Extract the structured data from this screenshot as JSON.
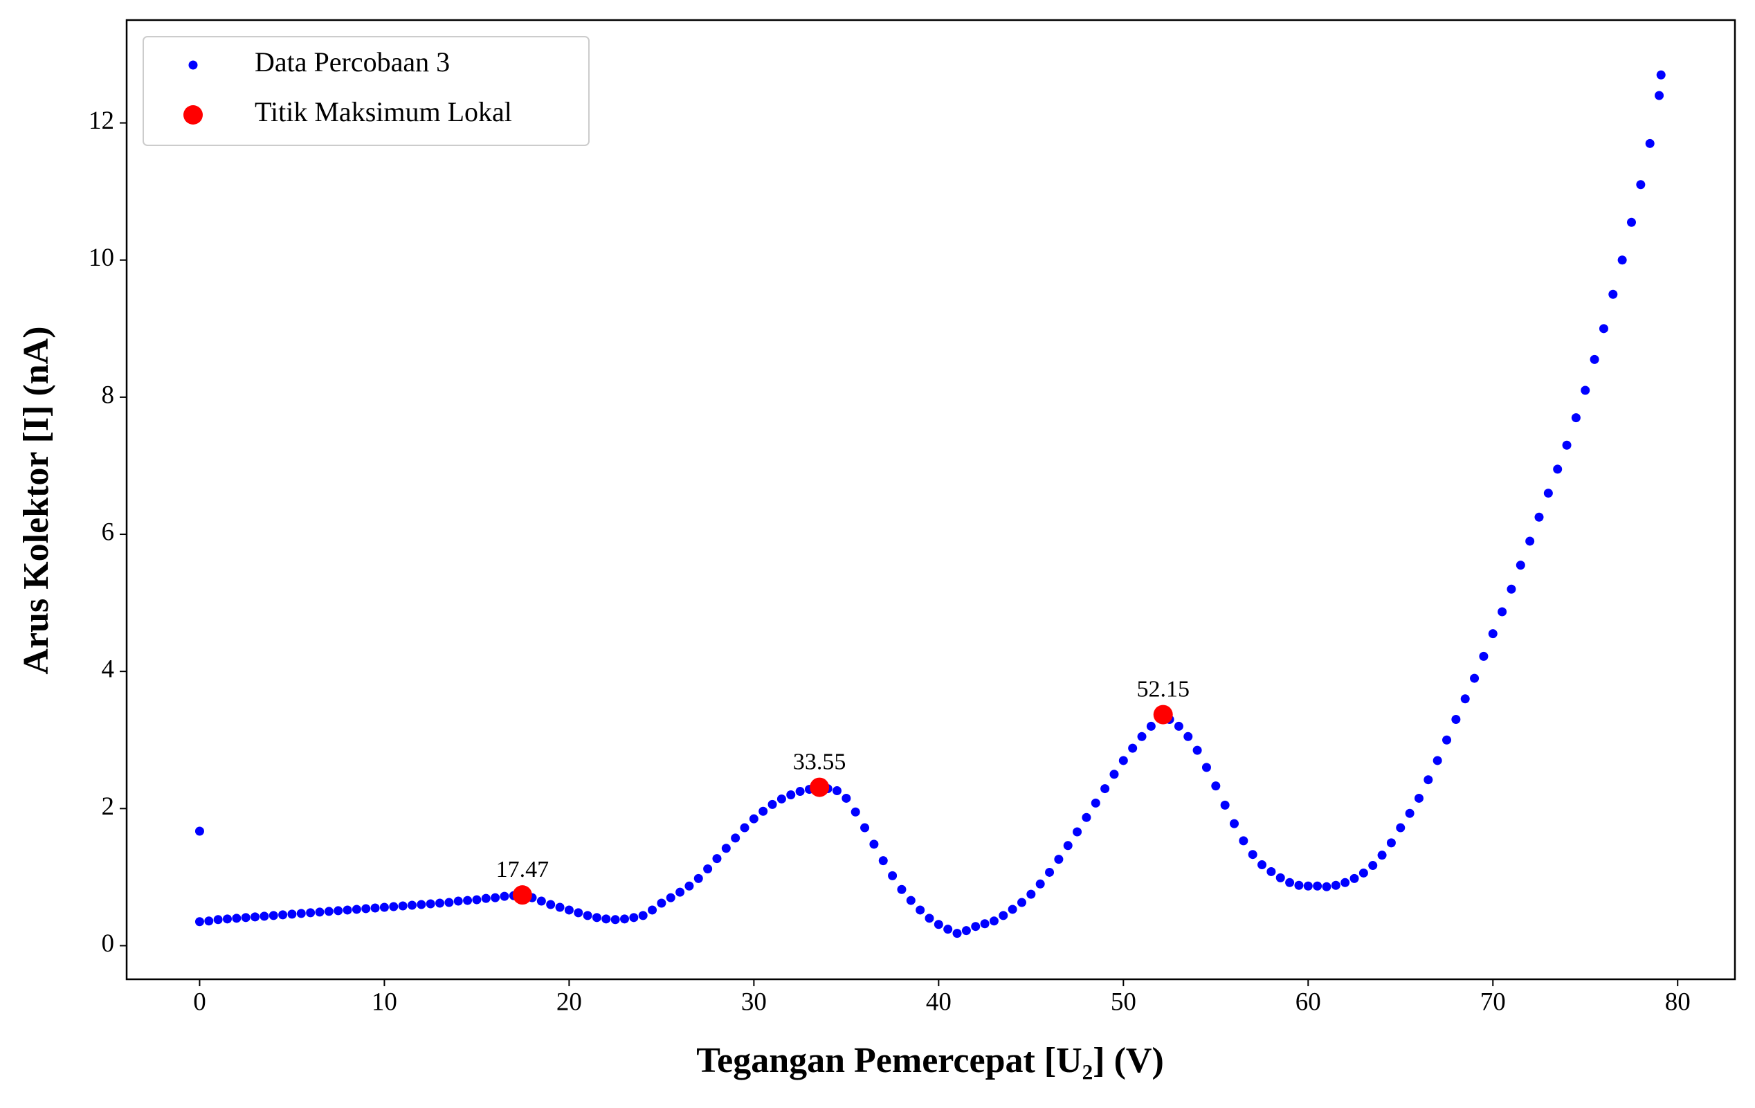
{
  "chart_data": {
    "type": "scatter",
    "xlabel": "Tegangan Pemercepat [U₂] (V)",
    "ylabel": "Arus Kolektor [I] (nA)",
    "xlim": [
      -3.95,
      83.1
    ],
    "ylim": [
      -0.49,
      13.5
    ],
    "xticks": [
      0,
      10,
      20,
      30,
      40,
      50,
      60,
      70,
      80
    ],
    "yticks": [
      0,
      2,
      4,
      6,
      8,
      10,
      12
    ],
    "grid": false,
    "legend": "upper left",
    "series": [
      {
        "name": "Data Percobaan 3",
        "color": "#0000ff",
        "x": [
          0,
          0,
          0.5,
          1,
          1.5,
          2,
          2.5,
          3,
          3.5,
          4,
          4.5,
          5,
          5.5,
          6,
          6.5,
          7,
          7.5,
          8,
          8.5,
          9,
          9.5,
          10,
          10.5,
          11,
          11.5,
          12,
          12.5,
          13,
          13.5,
          14,
          14.5,
          15,
          15.5,
          16,
          16.5,
          17,
          17.5,
          18,
          18.5,
          19,
          19.5,
          20,
          20.5,
          21,
          21.5,
          22,
          22.5,
          23,
          23.5,
          24,
          24.5,
          25,
          25.5,
          26,
          26.5,
          27,
          27.5,
          28,
          28.5,
          29,
          29.5,
          30,
          30.5,
          31,
          31.5,
          32,
          32.5,
          33,
          33.5,
          34,
          34.5,
          35,
          35.5,
          36,
          36.5,
          37,
          37.5,
          38,
          38.5,
          39,
          39.5,
          40,
          40.5,
          41,
          41.5,
          42,
          42.5,
          43,
          43.5,
          44,
          44.5,
          45,
          45.5,
          46,
          46.5,
          47,
          47.5,
          48,
          48.5,
          49,
          49.5,
          50,
          50.5,
          51,
          51.5,
          52,
          52.5,
          53,
          53.5,
          54,
          54.5,
          55,
          55.5,
          56,
          56.5,
          57,
          57.5,
          58,
          58.5,
          59,
          59.5,
          60,
          60.5,
          61,
          61.5,
          62,
          62.5,
          63,
          63.5,
          64,
          64.5,
          65,
          65.5,
          66,
          66.5,
          67,
          67.5,
          68,
          68.5,
          69,
          69.5,
          70,
          70.5,
          71,
          71.5,
          72,
          72.5,
          73,
          73.5,
          74,
          74.5,
          75,
          75.5,
          76,
          76.5,
          77,
          77.5,
          78,
          78.5,
          79,
          79.1
        ],
        "values": [
          1.67,
          0.35,
          0.36,
          0.38,
          0.39,
          0.4,
          0.41,
          0.42,
          0.43,
          0.44,
          0.45,
          0.46,
          0.47,
          0.48,
          0.49,
          0.5,
          0.51,
          0.52,
          0.53,
          0.54,
          0.55,
          0.56,
          0.57,
          0.58,
          0.59,
          0.6,
          0.61,
          0.62,
          0.63,
          0.65,
          0.66,
          0.67,
          0.69,
          0.7,
          0.72,
          0.73,
          0.74,
          0.7,
          0.65,
          0.6,
          0.56,
          0.52,
          0.48,
          0.44,
          0.41,
          0.39,
          0.38,
          0.39,
          0.41,
          0.44,
          0.52,
          0.62,
          0.7,
          0.78,
          0.87,
          0.98,
          1.12,
          1.27,
          1.42,
          1.57,
          1.72,
          1.85,
          1.96,
          2.06,
          2.14,
          2.2,
          2.25,
          2.28,
          2.3,
          2.29,
          2.26,
          2.15,
          1.95,
          1.72,
          1.48,
          1.24,
          1.02,
          0.82,
          0.66,
          0.52,
          0.4,
          0.31,
          0.24,
          0.18,
          0.22,
          0.28,
          0.32,
          0.36,
          0.44,
          0.53,
          0.63,
          0.75,
          0.9,
          1.07,
          1.26,
          1.46,
          1.66,
          1.87,
          2.08,
          2.29,
          2.5,
          2.7,
          2.88,
          3.05,
          3.2,
          3.33,
          3.3,
          3.2,
          3.05,
          2.85,
          2.6,
          2.33,
          2.05,
          1.78,
          1.53,
          1.33,
          1.18,
          1.08,
          0.99,
          0.92,
          0.88,
          0.87,
          0.87,
          0.86,
          0.88,
          0.92,
          0.98,
          1.06,
          1.17,
          1.32,
          1.5,
          1.72,
          1.93,
          2.15,
          2.42,
          2.7,
          3.0,
          3.3,
          3.6,
          3.9,
          4.22,
          4.55,
          4.87,
          5.2,
          5.55,
          5.9,
          6.25,
          6.6,
          6.95,
          7.3,
          7.7,
          8.1,
          8.55,
          9.0,
          9.5,
          10.0,
          10.55,
          11.1,
          11.7,
          12.4,
          12.7
        ]
      },
      {
        "name": "Titik Maksimum Lokal",
        "color": "#ff0000",
        "x": [
          17.47,
          33.55,
          52.15
        ],
        "values": [
          0.74,
          2.31,
          3.37
        ]
      }
    ]
  }
}
